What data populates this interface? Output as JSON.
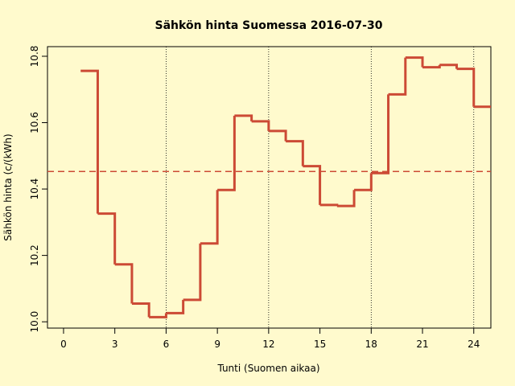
{
  "chart_data": {
    "type": "step",
    "title": "Sähkön hinta Suomessa 2016-07-30",
    "x_label": "Tunti (Suomen aikaa)",
    "y_label": "Sähkön hinta (c/(kWh)",
    "x": [
      1,
      2,
      3,
      4,
      5,
      6,
      7,
      8,
      9,
      10,
      11,
      12,
      13,
      14,
      15,
      16,
      17,
      18,
      19,
      20,
      21,
      22,
      23,
      24
    ],
    "series": [
      {
        "name": "hinta",
        "color": "#cc4a35",
        "values": [
          10.756,
          10.326,
          10.173,
          10.055,
          10.014,
          10.026,
          10.066,
          10.236,
          10.397,
          10.621,
          10.604,
          10.575,
          10.544,
          10.469,
          10.352,
          10.349,
          10.397,
          10.448,
          10.685,
          10.796,
          10.767,
          10.774,
          10.762,
          10.648
        ]
      }
    ],
    "mean_line": 10.453,
    "vlines": [
      6,
      12,
      18,
      24
    ],
    "xlim": [
      -0.94,
      25
    ],
    "ylim": [
      9.981,
      10.829
    ],
    "xticks": [
      0,
      3,
      6,
      9,
      12,
      15,
      18,
      21,
      24
    ],
    "yticks": [
      {
        "value": 10,
        "label": "10.0"
      },
      10.2,
      10.4,
      10.6,
      10.8
    ],
    "background": "#fffacd"
  }
}
